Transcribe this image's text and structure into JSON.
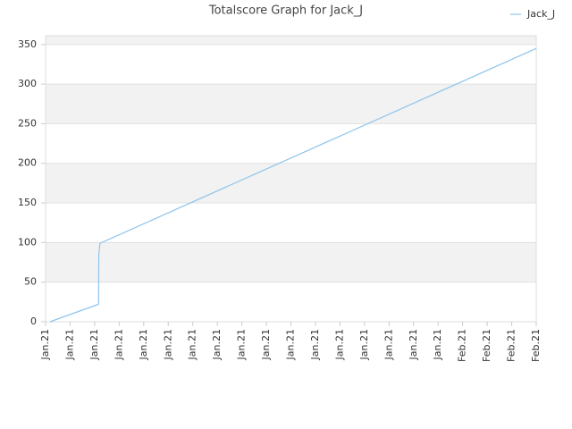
{
  "chart_data": {
    "type": "line",
    "title": "Totalscore Graph for Jack_J",
    "x": [
      0.18,
      2.15,
      2.16,
      2.17,
      2.22,
      20
    ],
    "series": [
      {
        "name": "Jack_J",
        "color": "#8ec4ec",
        "values": [
          0,
          22,
          23,
          85,
          99,
          345
        ]
      }
    ],
    "xlim": [
      0,
      20
    ],
    "xticks": [
      {
        "value": 0,
        "label": "Jan.21"
      },
      {
        "value": 1,
        "label": "Jan.21"
      },
      {
        "value": 2,
        "label": "Jan.21"
      },
      {
        "value": 3,
        "label": "Jan.21"
      },
      {
        "value": 4,
        "label": "Jan.21"
      },
      {
        "value": 5,
        "label": "Jan.21"
      },
      {
        "value": 6,
        "label": "Jan.21"
      },
      {
        "value": 7,
        "label": "Jan.21"
      },
      {
        "value": 8,
        "label": "Jan.21"
      },
      {
        "value": 9,
        "label": "Jan.21"
      },
      {
        "value": 10,
        "label": "Jan.21"
      },
      {
        "value": 11,
        "label": "Jan.21"
      },
      {
        "value": 12,
        "label": "Jan.21"
      },
      {
        "value": 13,
        "label": "Jan.21"
      },
      {
        "value": 14,
        "label": "Jan.21"
      },
      {
        "value": 15,
        "label": "Jan.21"
      },
      {
        "value": 16,
        "label": "Jan.21"
      },
      {
        "value": 17,
        "label": "Feb.21"
      },
      {
        "value": 18,
        "label": "Feb.21"
      },
      {
        "value": 19,
        "label": "Feb.21"
      },
      {
        "value": 20,
        "label": "Feb.21"
      }
    ],
    "ylim": [
      0,
      361
    ],
    "yticks": [
      0,
      50,
      100,
      150,
      200,
      250,
      300,
      350
    ],
    "grid": true,
    "legend": "top-right"
  }
}
